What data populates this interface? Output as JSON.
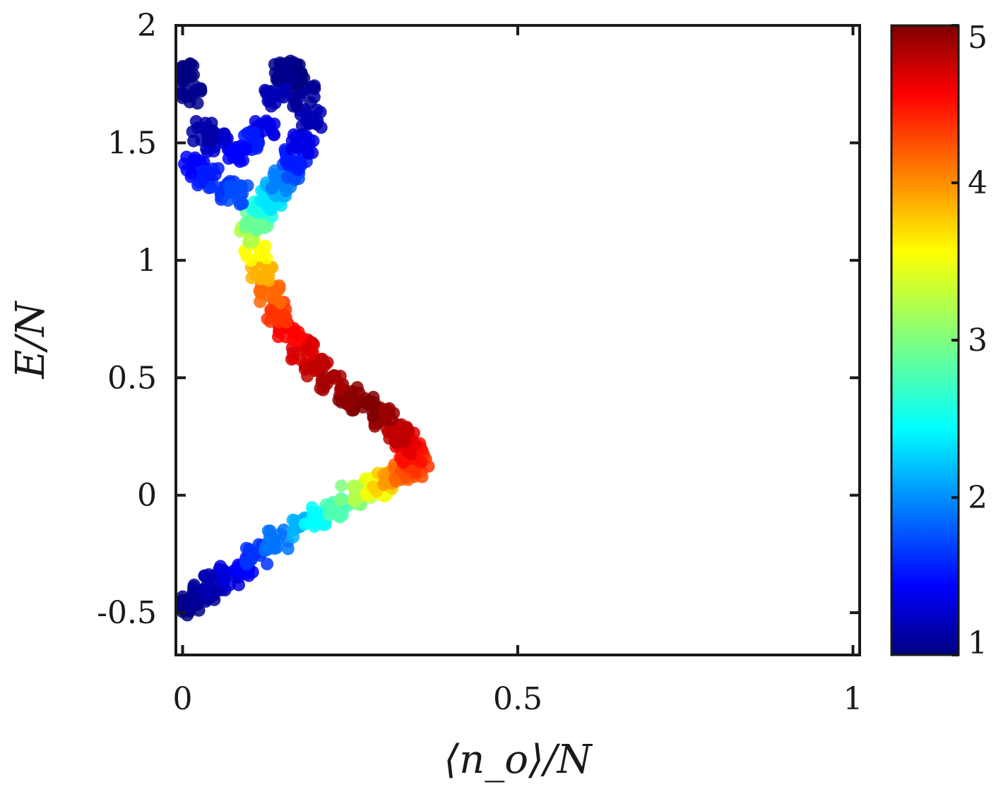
{
  "chart_data": {
    "type": "scatter",
    "title": "",
    "xlabel": "⟨n_o⟩/N",
    "ylabel": "E/N",
    "xlim": [
      -0.01,
      1.01
    ],
    "ylim": [
      -0.68,
      2.0
    ],
    "x_ticks": [
      0,
      0.5,
      1
    ],
    "x_tick_labels": [
      "0",
      "0.5",
      "1"
    ],
    "y_ticks": [
      -0.5,
      0,
      0.5,
      1,
      1.5,
      2
    ],
    "y_tick_labels": [
      "-0.5",
      "0",
      "0.5",
      "1",
      "1.5",
      "2"
    ],
    "grid": false,
    "legend": "none",
    "colorbar": {
      "range": [
        1,
        5
      ],
      "ticks": [
        1,
        2,
        3,
        4,
        5
      ],
      "tick_labels": [
        "1",
        "2",
        "3",
        "4",
        "5"
      ],
      "colormap": "jet"
    },
    "series": [
      {
        "description": "point cloud, x=<n_o>/N, y=E/N, c=color value",
        "x": [
          0.0,
          0.01,
          0.03,
          0.05,
          0.07,
          0.09,
          0.11,
          0.14,
          0.17,
          0.2,
          0.23,
          0.25,
          0.27,
          0.29,
          0.3,
          0.31,
          0.33,
          0.34,
          0.35,
          0.34,
          0.33,
          0.32,
          0.3,
          0.27,
          0.25,
          0.22,
          0.2,
          0.18,
          0.16,
          0.14,
          0.13,
          0.12,
          0.11,
          0.1,
          0.11,
          0.12,
          0.13,
          0.14,
          0.15,
          0.16,
          0.17,
          0.18,
          0.19,
          0.18,
          0.17,
          0.16,
          0.15,
          0.14,
          0.12,
          0.1,
          0.08,
          0.05,
          0.03,
          0.01,
          0.0,
          0.02,
          0.04,
          0.06,
          0.08
        ],
        "y": [
          -0.47,
          -0.45,
          -0.42,
          -0.38,
          -0.34,
          -0.3,
          -0.25,
          -0.19,
          -0.14,
          -0.09,
          -0.05,
          0.0,
          0.02,
          0.04,
          0.06,
          0.08,
          0.1,
          0.12,
          0.14,
          0.18,
          0.22,
          0.27,
          0.33,
          0.38,
          0.43,
          0.49,
          0.55,
          0.62,
          0.7,
          0.78,
          0.86,
          0.95,
          1.04,
          1.12,
          1.17,
          1.22,
          1.26,
          1.3,
          1.34,
          1.38,
          1.43,
          1.5,
          1.6,
          1.7,
          1.78,
          1.81,
          1.8,
          1.7,
          1.55,
          1.5,
          1.45,
          1.5,
          1.55,
          1.7,
          1.8,
          1.4,
          1.35,
          1.3,
          1.28
        ],
        "c": [
          1.0,
          1.05,
          1.1,
          1.2,
          1.35,
          1.5,
          1.7,
          1.95,
          2.2,
          2.5,
          2.8,
          3.0,
          3.2,
          3.45,
          3.7,
          3.9,
          4.1,
          4.2,
          4.3,
          4.45,
          4.6,
          4.75,
          4.9,
          5.0,
          4.95,
          4.85,
          4.75,
          4.65,
          4.5,
          4.3,
          4.1,
          3.8,
          3.5,
          3.2,
          2.9,
          2.6,
          2.4,
          2.2,
          2.0,
          1.8,
          1.6,
          1.4,
          1.2,
          1.1,
          1.0,
          1.0,
          1.05,
          1.2,
          1.4,
          1.6,
          1.5,
          1.3,
          1.15,
          1.05,
          1.0,
          1.5,
          1.6,
          1.7,
          1.8
        ]
      }
    ]
  }
}
